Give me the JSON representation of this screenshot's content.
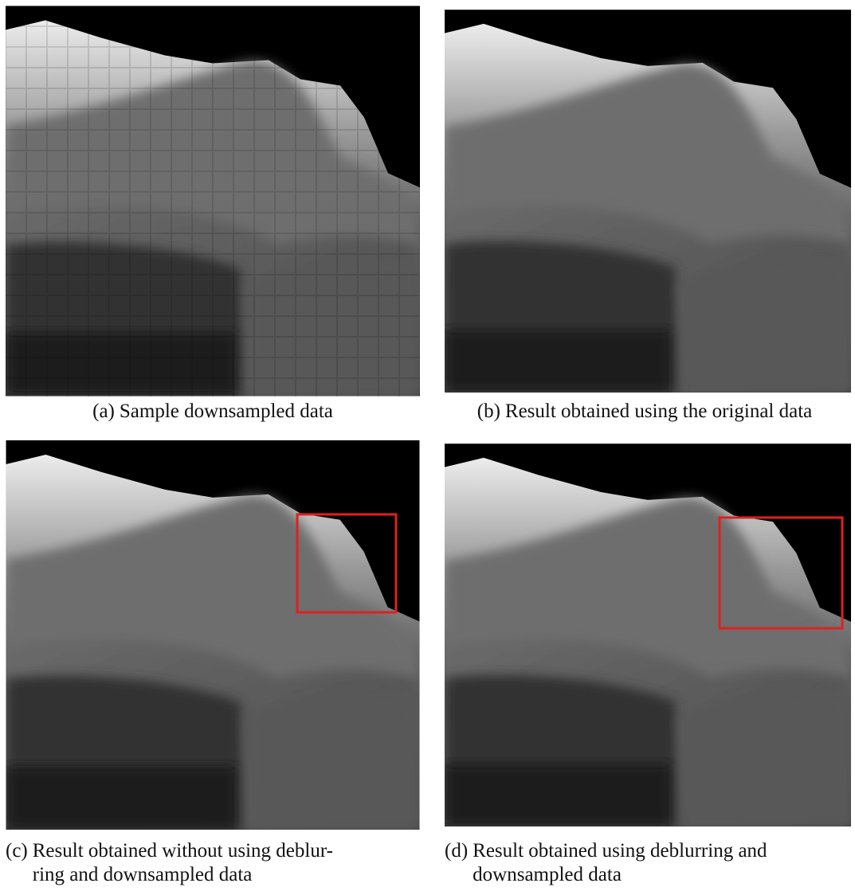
{
  "figures": [
    {
      "label": "(a)",
      "lines": [
        "Sample downsampled data"
      ]
    },
    {
      "label": "(b)",
      "lines": [
        "Result obtained using the original data"
      ]
    },
    {
      "label": "(c)",
      "lines": [
        "Result obtained without using deblur-",
        "ring and downsampled data"
      ]
    },
    {
      "label": "(d)",
      "lines": [
        "Result obtained using deblurring and",
        "downsampled data"
      ]
    }
  ]
}
